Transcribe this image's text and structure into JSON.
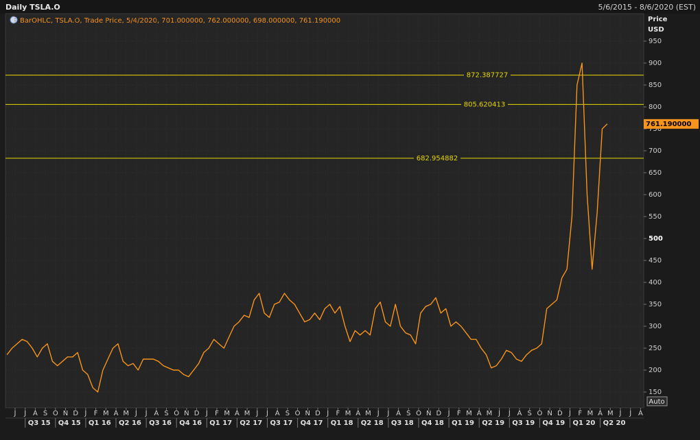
{
  "chart_data": {
    "type": "line",
    "title": "Daily TSLA.O",
    "date_range": "5/6/2015 - 8/6/2020 (EST)",
    "legend_text": "BarOHLC, TSLA.O, Trade Price, 5/4/2020, 701.000000, 762.000000, 698.000000, 761.190000",
    "y_axis_label": "Price",
    "y_axis_unit": "USD",
    "auto_button": "Auto",
    "ylim": [
      114,
      1012.5
    ],
    "yticks": [
      150,
      200,
      250,
      300,
      350,
      400,
      450,
      500,
      550,
      600,
      650,
      700,
      750,
      800,
      850,
      900,
      950
    ],
    "bold_tick": 500,
    "grid": true,
    "month_labels": [
      "J",
      "J",
      "A",
      "S",
      "O",
      "N",
      "D",
      "J",
      "F",
      "M",
      "A",
      "M",
      "J",
      "J",
      "A",
      "S",
      "O",
      "N",
      "D",
      "J",
      "F",
      "M",
      "A",
      "M",
      "J",
      "J",
      "A",
      "S",
      "O",
      "N",
      "D",
      "J",
      "F",
      "M",
      "A",
      "M",
      "J",
      "J",
      "A",
      "S",
      "O",
      "N",
      "D",
      "J",
      "F",
      "M",
      "A",
      "M",
      "J",
      "J",
      "A",
      "S",
      "O",
      "N",
      "D",
      "J",
      "F",
      "M",
      "A",
      "M",
      "J",
      "J",
      "A"
    ],
    "quarter_labels": [
      "Q3 15",
      "Q4 15",
      "Q1 16",
      "Q2 16",
      "Q3 16",
      "Q4 16",
      "Q1 17",
      "Q2 17",
      "Q3 17",
      "Q4 17",
      "Q1 18",
      "Q2 18",
      "Q3 18",
      "Q4 18",
      "Q1 19",
      "Q2 19",
      "Q3 19",
      "Q4 19",
      "Q1 20",
      "Q2 20"
    ],
    "hlines": [
      872.387727,
      805.620413,
      682.954882
    ],
    "hline_color": "#e8d800",
    "last_price": {
      "value": 761.19,
      "label": "761.190000"
    },
    "series": [
      {
        "name": "TSLA.O",
        "color": "#f7941d",
        "values": [
          235,
          250,
          260,
          270,
          265,
          250,
          230,
          250,
          260,
          220,
          210,
          220,
          230,
          230,
          240,
          200,
          190,
          160,
          150,
          200,
          225,
          250,
          260,
          220,
          210,
          215,
          200,
          225,
          225,
          225,
          220,
          210,
          205,
          200,
          200,
          190,
          185,
          200,
          215,
          240,
          250,
          270,
          260,
          250,
          275,
          300,
          310,
          325,
          320,
          360,
          375,
          330,
          320,
          350,
          355,
          375,
          360,
          350,
          330,
          310,
          315,
          330,
          315,
          340,
          350,
          330,
          345,
          300,
          265,
          290,
          280,
          290,
          280,
          340,
          355,
          310,
          300,
          350,
          300,
          285,
          280,
          260,
          330,
          345,
          350,
          365,
          330,
          340,
          300,
          310,
          300,
          285,
          270,
          270,
          250,
          235,
          205,
          210,
          225,
          245,
          240,
          225,
          220,
          235,
          245,
          250,
          260,
          340,
          350,
          360,
          410,
          430,
          550,
          850,
          900,
          600,
          430,
          560,
          750,
          761.19
        ]
      }
    ]
  }
}
